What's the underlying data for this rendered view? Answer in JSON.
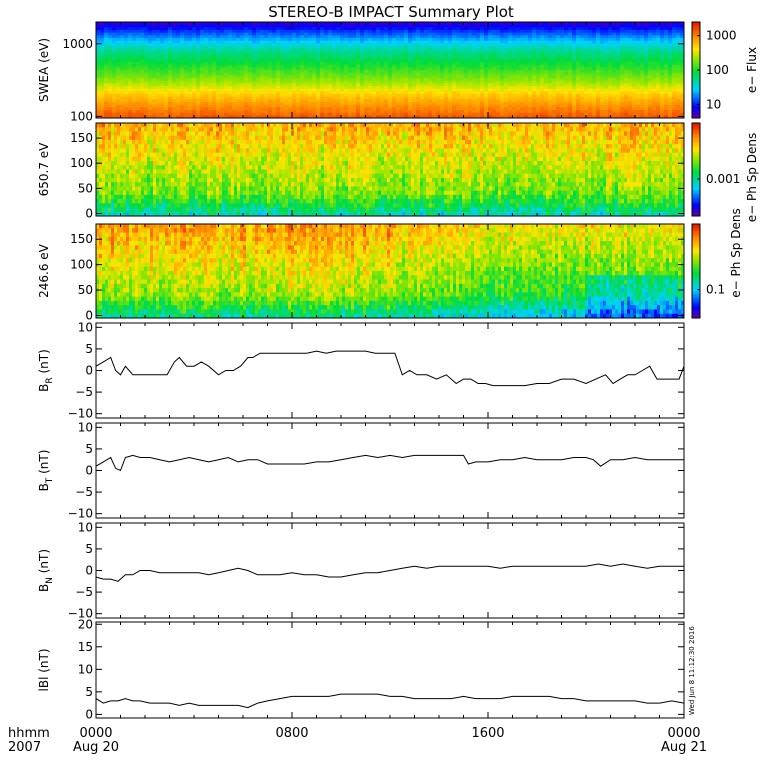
{
  "title": "STEREO-B IMPACT Summary Plot",
  "stamp": "Wed Jun  8 11:12:30 2016",
  "x_axis": {
    "corner_top": "hhmm",
    "corner_bottom": "2007",
    "ticks": [
      {
        "time": "0000",
        "date": "Aug 20",
        "hour": 0
      },
      {
        "time": "0800",
        "date": "",
        "hour": 8
      },
      {
        "time": "1600",
        "date": "",
        "hour": 16
      },
      {
        "time": "0000",
        "date": "Aug 21",
        "hour": 24
      }
    ]
  },
  "colorbar_labels": [
    "e− Flux",
    "e− Ph Sp Dens",
    "e− Ph Sp Dens"
  ],
  "chart_data": [
    {
      "type": "heatmap",
      "ylabel": "SWEA (eV)",
      "ylog": true,
      "ylim": [
        95,
        2000
      ],
      "y_ticks": [
        {
          "v": 100,
          "label": "100"
        },
        {
          "v": 1000,
          "label": "1000"
        }
      ],
      "colorbar": {
        "log": true,
        "range": [
          4,
          2500
        ],
        "ticks": [
          {
            "v": 10,
            "label": "10"
          },
          {
            "v": 100,
            "label": "100"
          },
          {
            "v": 1000,
            "label": "1000"
          }
        ]
      },
      "bands_by_energy_top_to_bottom": [
        "blue",
        "cyan",
        "green",
        "yellow",
        "orange",
        "red"
      ]
    },
    {
      "type": "heatmap",
      "ylabel": "650.7 eV",
      "ylim": [
        -5,
        180
      ],
      "y_ticks": [
        {
          "v": 0,
          "label": "0"
        },
        {
          "v": 50,
          "label": "50"
        },
        {
          "v": 100,
          "label": "100"
        },
        {
          "v": 150,
          "label": "150"
        }
      ],
      "colorbar": {
        "log": true,
        "range": [
          0.0004,
          0.004
        ],
        "ticks": [
          {
            "v": 0.001,
            "label": "0.001"
          }
        ]
      }
    },
    {
      "type": "heatmap",
      "ylabel": "246.6 eV",
      "ylim": [
        -5,
        180
      ],
      "y_ticks": [
        {
          "v": 0,
          "label": "0"
        },
        {
          "v": 50,
          "label": "50"
        },
        {
          "v": 100,
          "label": "100"
        },
        {
          "v": 150,
          "label": "150"
        }
      ],
      "colorbar": {
        "log": true,
        "range": [
          0.05,
          0.5
        ],
        "ticks": [
          {
            "v": 0.1,
            "label": "0.1"
          }
        ]
      }
    },
    {
      "type": "line",
      "ylabel": "B_R (nT)",
      "ylabel_main": "B",
      "ylabel_sub": "R",
      "ylabel_rest": " (nT)",
      "ylim": [
        -11,
        11
      ],
      "y_ticks": [
        {
          "v": -10,
          "label": "−10"
        },
        {
          "v": -5,
          "label": "−5"
        },
        {
          "v": 0,
          "label": "0"
        },
        {
          "v": 5,
          "label": "5"
        },
        {
          "v": 10,
          "label": "10"
        }
      ],
      "x": [
        0,
        0.3,
        0.6,
        0.8,
        1.0,
        1.2,
        1.5,
        1.8,
        2.2,
        2.6,
        2.9,
        3.2,
        3.4,
        3.7,
        4.0,
        4.3,
        4.6,
        5.0,
        5.3,
        5.6,
        5.9,
        6.2,
        6.4,
        6.7,
        7.0,
        7.4,
        7.8,
        8.2,
        8.6,
        9.0,
        9.4,
        9.8,
        10.2,
        10.6,
        11.0,
        11.4,
        11.8,
        12.2,
        12.5,
        12.8,
        13.1,
        13.5,
        13.9,
        14.3,
        14.7,
        15.0,
        15.3,
        15.6,
        15.9,
        16.2,
        16.6,
        17.0,
        17.5,
        18.0,
        18.5,
        19.0,
        19.5,
        20.0,
        20.4,
        20.8,
        21.1,
        21.4,
        21.7,
        22.0,
        22.3,
        22.6,
        22.9,
        23.2,
        23.5,
        23.8,
        24.0
      ],
      "y": [
        1,
        2,
        3,
        0,
        -1,
        1,
        -1,
        -1,
        -1,
        -1,
        -1,
        2,
        3,
        1,
        1,
        2,
        1,
        -1,
        0,
        0,
        1,
        3,
        3,
        4,
        4,
        4,
        4,
        4,
        4,
        4.5,
        4,
        4.5,
        4.5,
        4.5,
        4.5,
        4,
        4,
        4,
        -1,
        0,
        -1,
        -1,
        -2,
        -1,
        -3,
        -2,
        -2,
        -3,
        -3,
        -3.5,
        -3.5,
        -3.5,
        -3.5,
        -3,
        -3,
        -2,
        -2,
        -3,
        -2,
        -1,
        -3,
        -2,
        -1,
        -1,
        0,
        1,
        -2,
        -2,
        -2,
        -2,
        1
      ],
      "grid": false
    },
    {
      "type": "line",
      "ylabel": "B_T (nT)",
      "ylabel_main": "B",
      "ylabel_sub": "T",
      "ylabel_rest": " (nT)",
      "ylim": [
        -11,
        11
      ],
      "y_ticks": [
        {
          "v": -10,
          "label": "−10"
        },
        {
          "v": -5,
          "label": "−5"
        },
        {
          "v": 0,
          "label": "0"
        },
        {
          "v": 5,
          "label": "5"
        },
        {
          "v": 10,
          "label": "10"
        }
      ],
      "x": [
        0,
        0.3,
        0.6,
        0.8,
        1.0,
        1.2,
        1.5,
        1.8,
        2.2,
        2.6,
        3.0,
        3.4,
        3.8,
        4.2,
        4.6,
        5.0,
        5.4,
        5.8,
        6.2,
        6.6,
        7.0,
        7.5,
        8.0,
        8.5,
        9.0,
        9.5,
        10.0,
        10.5,
        11.0,
        11.5,
        12.0,
        12.5,
        13.0,
        13.5,
        14.0,
        14.5,
        15.0,
        15.2,
        15.5,
        16.0,
        16.5,
        17.0,
        17.5,
        18.0,
        18.5,
        19.0,
        19.5,
        20.0,
        20.3,
        20.6,
        21.0,
        21.5,
        22.0,
        22.5,
        23.0,
        23.5,
        24.0
      ],
      "y": [
        1,
        2,
        3,
        0.5,
        0,
        3,
        3.5,
        3,
        3,
        2.5,
        2,
        2.5,
        3,
        2.5,
        2,
        2.5,
        3,
        2,
        2.5,
        2.5,
        1.5,
        1.5,
        1.5,
        1.5,
        2,
        2,
        2.5,
        3,
        3.5,
        3,
        3.5,
        3,
        3.5,
        3.5,
        3.5,
        3.5,
        3.5,
        1.5,
        2,
        2,
        2.5,
        2.5,
        3,
        2.5,
        2.5,
        2.5,
        3,
        3,
        2.5,
        1,
        2.5,
        2.5,
        3,
        2.5,
        2.5,
        2.5,
        2.5
      ],
      "grid": false
    },
    {
      "type": "line",
      "ylabel": "B_N (nT)",
      "ylabel_main": "B",
      "ylabel_sub": "N",
      "ylabel_rest": " (nT)",
      "ylim": [
        -11,
        11
      ],
      "y_ticks": [
        {
          "v": -10,
          "label": "−10"
        },
        {
          "v": -5,
          "label": "−5"
        },
        {
          "v": 0,
          "label": "0"
        },
        {
          "v": 5,
          "label": "5"
        },
        {
          "v": 10,
          "label": "10"
        }
      ],
      "x": [
        0,
        0.3,
        0.6,
        0.9,
        1.2,
        1.5,
        1.8,
        2.2,
        2.6,
        3.0,
        3.4,
        3.8,
        4.2,
        4.6,
        5.0,
        5.4,
        5.8,
        6.2,
        6.6,
        7.0,
        7.5,
        8.0,
        8.5,
        9.0,
        9.5,
        10.0,
        10.5,
        11.0,
        11.5,
        12.0,
        12.5,
        13.0,
        13.5,
        14.0,
        14.5,
        15.0,
        15.5,
        16.0,
        16.5,
        17.0,
        17.5,
        18.0,
        18.5,
        19.0,
        19.5,
        20.0,
        20.5,
        21.0,
        21.5,
        22.0,
        22.5,
        23.0,
        23.5,
        24.0
      ],
      "y": [
        -1.5,
        -2,
        -2,
        -2.5,
        -1,
        -1,
        0,
        0,
        -0.5,
        -0.5,
        -0.5,
        -0.5,
        -0.5,
        -1,
        -0.5,
        0,
        0.5,
        0,
        -1,
        -1,
        -1,
        -0.5,
        -1,
        -1,
        -1.5,
        -1.5,
        -1,
        -0.5,
        -0.5,
        0,
        0.5,
        1,
        0.5,
        1,
        1,
        1,
        1,
        1,
        0.5,
        1,
        1,
        1,
        1,
        1,
        1,
        1,
        1.5,
        1,
        1.5,
        1,
        0.5,
        1,
        1,
        1
      ],
      "grid": false
    },
    {
      "type": "line",
      "ylabel": "|B| (nT)",
      "ylabel_display": "lBl (nT)",
      "ylim": [
        -0.8,
        20.5
      ],
      "y_ticks": [
        {
          "v": 0,
          "label": "0"
        },
        {
          "v": 5,
          "label": "5"
        },
        {
          "v": 10,
          "label": "10"
        },
        {
          "v": 15,
          "label": "15"
        },
        {
          "v": 20,
          "label": "20"
        }
      ],
      "x": [
        0,
        0.3,
        0.6,
        0.9,
        1.2,
        1.5,
        1.8,
        2.2,
        2.6,
        3.0,
        3.4,
        3.8,
        4.2,
        4.6,
        5.0,
        5.4,
        5.8,
        6.2,
        6.6,
        7.0,
        7.5,
        8.0,
        8.5,
        9.0,
        9.5,
        10.0,
        10.5,
        11.0,
        11.5,
        12.0,
        12.5,
        13.0,
        13.5,
        14.0,
        14.5,
        15.0,
        15.5,
        16.0,
        16.5,
        17.0,
        17.5,
        18.0,
        18.5,
        19.0,
        19.5,
        20.0,
        20.5,
        21.0,
        21.5,
        22.0,
        22.5,
        23.0,
        23.5,
        24.0
      ],
      "y": [
        3.5,
        2.5,
        3,
        3,
        3.5,
        3,
        3,
        2.5,
        2.5,
        2.5,
        2,
        2.5,
        2,
        2,
        2,
        2,
        2,
        1.5,
        2.5,
        3,
        3.5,
        4,
        4,
        4,
        4,
        4.5,
        4.5,
        4.5,
        4.5,
        4,
        4,
        3.5,
        3.5,
        3.5,
        3.5,
        4,
        3.5,
        3.5,
        3.5,
        4,
        4,
        4,
        4,
        3.5,
        3.5,
        3,
        3,
        3,
        3,
        3,
        2.5,
        2.5,
        3,
        2.5
      ],
      "grid": false
    }
  ]
}
